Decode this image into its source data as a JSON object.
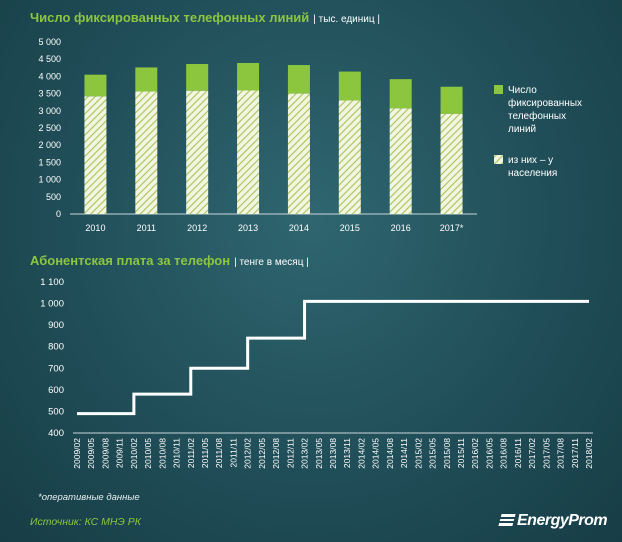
{
  "chart_data": [
    {
      "type": "bar",
      "title": "Число фиксированных телефонных линий",
      "unit": "| тыс. единиц |",
      "categories": [
        "2010",
        "2011",
        "2012",
        "2013",
        "2014",
        "2015",
        "2016",
        "2017*"
      ],
      "series": [
        {
          "name": "Число фиксированных телефонных линий",
          "values": [
            4050,
            4260,
            4360,
            4390,
            4330,
            4140,
            3920,
            3700
          ],
          "color": "#8cc63f"
        },
        {
          "name": "из них – у населения",
          "values": [
            3420,
            3560,
            3580,
            3590,
            3500,
            3300,
            3070,
            2910
          ],
          "pattern": "hatched",
          "color": "#dfe9b8"
        }
      ],
      "ylim": [
        0,
        5000
      ],
      "yticks": [
        "0",
        "500",
        "1 000",
        "1 500",
        "2 000",
        "2 500",
        "3 000",
        "3 500",
        "4 000",
        "4 500",
        "5 000"
      ],
      "legend": "right"
    },
    {
      "type": "line",
      "title": "Абонентская плата за телефон",
      "unit": "| тенге в месяц |",
      "x": [
        "2009/02",
        "2009/05",
        "2009/08",
        "2009/11",
        "2010/02",
        "2010/05",
        "2010/08",
        "2010/11",
        "2011/02",
        "2011/05",
        "2011/08",
        "2011/11",
        "2012/02",
        "2012/05",
        "2012/08",
        "2012/11",
        "2013/02",
        "2013/05",
        "2013/08",
        "2013/11",
        "2014/02",
        "2014/05",
        "2014/08",
        "2014/11",
        "2015/02",
        "2015/05",
        "2015/08",
        "2015/11",
        "2016/02",
        "2016/05",
        "2016/08",
        "2016/11",
        "2017/02",
        "2017/05",
        "2017/08",
        "2017/11",
        "2018/02"
      ],
      "y": [
        490,
        490,
        490,
        490,
        580,
        580,
        580,
        580,
        700,
        700,
        700,
        700,
        840,
        840,
        840,
        840,
        1010,
        1010,
        1010,
        1010,
        1010,
        1010,
        1010,
        1010,
        1010,
        1010,
        1010,
        1010,
        1010,
        1010,
        1010,
        1010,
        1010,
        1010,
        1010,
        1010,
        1010
      ],
      "step": true,
      "ylim": [
        400,
        1100
      ],
      "yticks": [
        "400",
        "500",
        "600",
        "700",
        "800",
        "900",
        "1 000",
        "1 100"
      ],
      "color": "#ffffff"
    }
  ],
  "footnote": "*оперативные данные",
  "source": "Источник: КС МНЭ РК",
  "logo": "EnergyProm"
}
